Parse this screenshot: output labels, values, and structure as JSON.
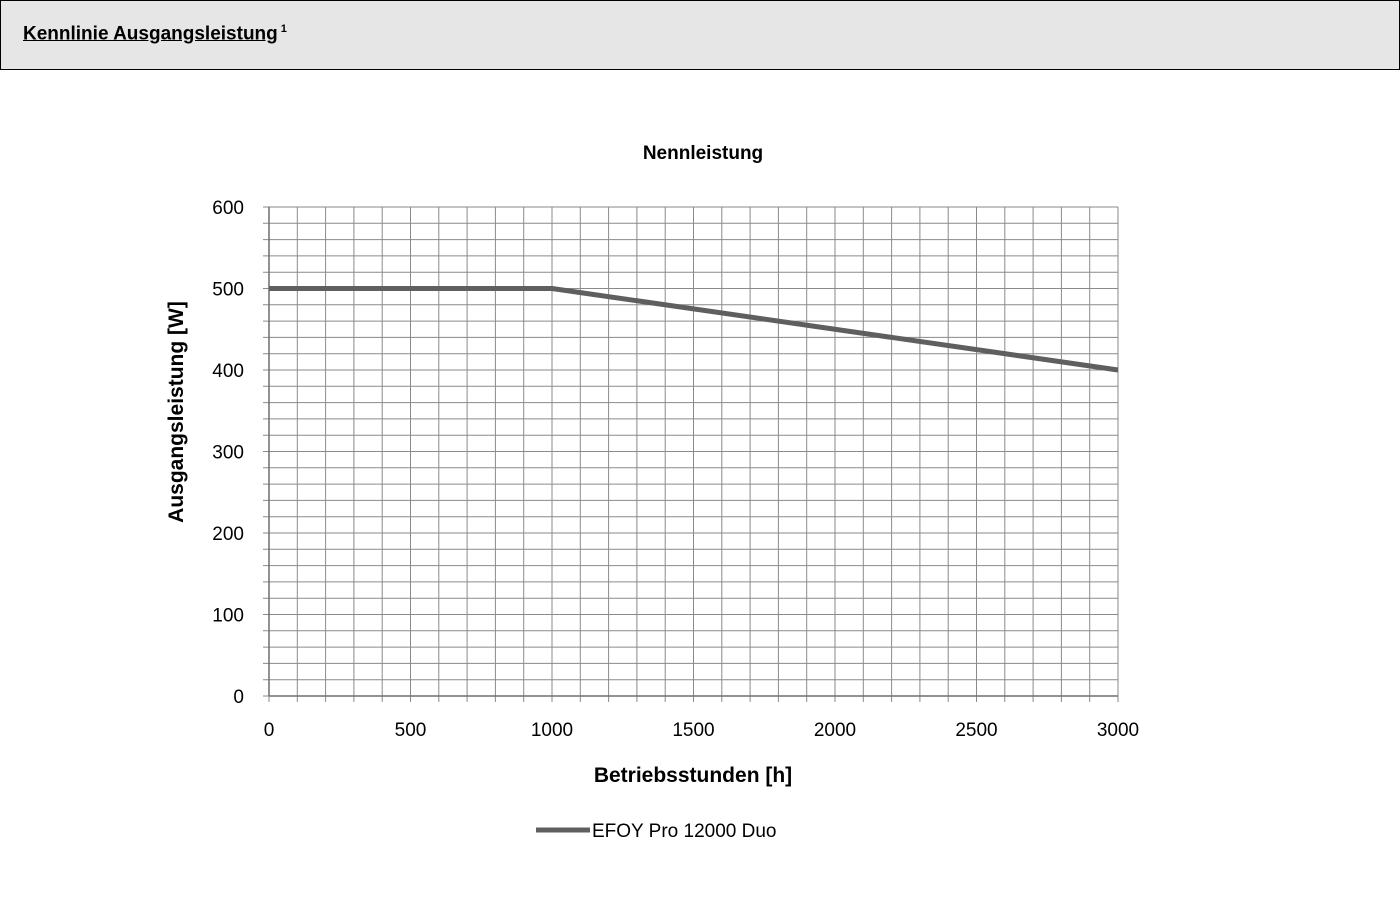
{
  "header": {
    "title": "Kennlinie Ausgangsleistung",
    "footnote": "1"
  },
  "chart_data": {
    "type": "line",
    "title": "Nennleistung",
    "xlabel": "Betriebsstunden [h]",
    "ylabel": "Ausgangsleistung [W]",
    "xlim": [
      0,
      3000
    ],
    "ylim": [
      0,
      600
    ],
    "x_ticks": [
      "0",
      "500",
      "1000",
      "1500",
      "2000",
      "2500",
      "3000"
    ],
    "y_ticks": [
      "0",
      "100",
      "200",
      "300",
      "400",
      "500",
      "600"
    ],
    "grid": true,
    "legend_position": "bottom",
    "series": [
      {
        "name": "EFOY Pro 12000 Duo",
        "color": "#5f5f5f",
        "points": [
          [
            0,
            500
          ],
          [
            1000,
            500
          ],
          [
            3000,
            400
          ]
        ]
      }
    ]
  }
}
